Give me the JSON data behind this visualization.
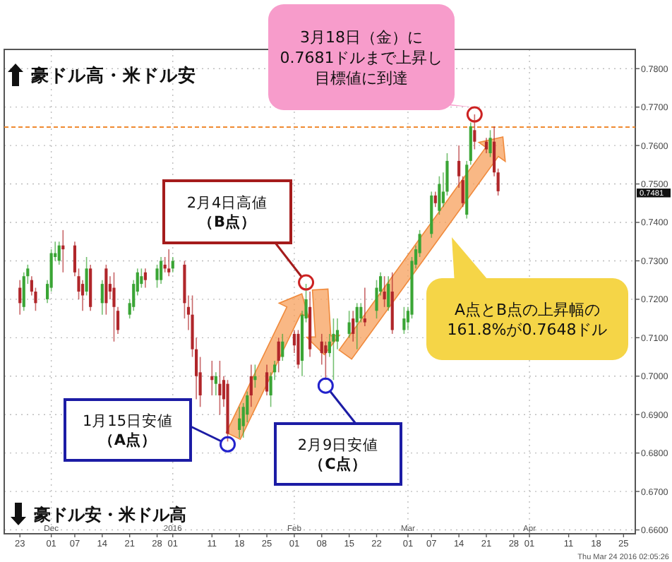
{
  "chart_data": {
    "type": "candlestick",
    "x": [
      "2015-11-23",
      "2015-11-24",
      "2015-11-25",
      "2015-11-26",
      "2015-11-27",
      "2015-11-30",
      "2015-12-01",
      "2015-12-02",
      "2015-12-03",
      "2015-12-04",
      "2015-12-07",
      "2015-12-08",
      "2015-12-09",
      "2015-12-10",
      "2015-12-11",
      "2015-12-14",
      "2015-12-15",
      "2015-12-16",
      "2015-12-17",
      "2015-12-18",
      "2015-12-21",
      "2015-12-22",
      "2015-12-23",
      "2015-12-24",
      "2015-12-25",
      "2015-12-28",
      "2015-12-29",
      "2015-12-30",
      "2015-12-31",
      "2016-01-01",
      "2016-01-04",
      "2016-01-05",
      "2016-01-06",
      "2016-01-07",
      "2016-01-08",
      "2016-01-11",
      "2016-01-12",
      "2016-01-13",
      "2016-01-14",
      "2016-01-15",
      "2016-01-18",
      "2016-01-19",
      "2016-01-20",
      "2016-01-21",
      "2016-01-22",
      "2016-01-25",
      "2016-01-26",
      "2016-01-27",
      "2016-01-28",
      "2016-01-29",
      "2016-02-01",
      "2016-02-02",
      "2016-02-03",
      "2016-02-04",
      "2016-02-05",
      "2016-02-08",
      "2016-02-09",
      "2016-02-10",
      "2016-02-11",
      "2016-02-12",
      "2016-02-15",
      "2016-02-16",
      "2016-02-17",
      "2016-02-18",
      "2016-02-19",
      "2016-02-22",
      "2016-02-23",
      "2016-02-24",
      "2016-02-25",
      "2016-02-26",
      "2016-02-29",
      "2016-03-01",
      "2016-03-02",
      "2016-03-03",
      "2016-03-04",
      "2016-03-07",
      "2016-03-08",
      "2016-03-09",
      "2016-03-10",
      "2016-03-11",
      "2016-03-14",
      "2016-03-15",
      "2016-03-16",
      "2016-03-17",
      "2016-03-18",
      "2016-03-21",
      "2016-03-22",
      "2016-03-23",
      "2016-03-24"
    ],
    "ohlc": [
      [
        0.723,
        0.725,
        0.716,
        0.719
      ],
      [
        0.718,
        0.727,
        0.717,
        0.726
      ],
      [
        0.726,
        0.729,
        0.724,
        0.728
      ],
      [
        0.725,
        0.726,
        0.721,
        0.722
      ],
      [
        0.722,
        0.723,
        0.717,
        0.719
      ],
      [
        0.72,
        0.725,
        0.719,
        0.724
      ],
      [
        0.723,
        0.733,
        0.722,
        0.732
      ],
      [
        0.731,
        0.735,
        0.73,
        0.732
      ],
      [
        0.73,
        0.735,
        0.729,
        0.734
      ],
      [
        0.734,
        0.738,
        0.727,
        0.733
      ],
      [
        0.734,
        0.735,
        0.726,
        0.727
      ],
      [
        0.726,
        0.728,
        0.72,
        0.722
      ],
      [
        0.724,
        0.725,
        0.717,
        0.721
      ],
      [
        0.722,
        0.731,
        0.721,
        0.728
      ],
      [
        0.728,
        0.729,
        0.717,
        0.718
      ],
      [
        0.719,
        0.725,
        0.716,
        0.724
      ],
      [
        0.728,
        0.729,
        0.716,
        0.719
      ],
      [
        0.724,
        0.726,
        0.72,
        0.722
      ],
      [
        0.723,
        0.727,
        0.709,
        0.718
      ],
      [
        0.717,
        0.718,
        0.711,
        0.712
      ],
      [
        0.716,
        0.72,
        0.715,
        0.719
      ],
      [
        0.718,
        0.725,
        0.717,
        0.724
      ],
      [
        0.722,
        0.728,
        0.721,
        0.727
      ],
      [
        0.724,
        0.728,
        0.723,
        0.726
      ],
      [
        0.727,
        0.728,
        0.723,
        0.725
      ],
      [
        0.725,
        0.729,
        0.723,
        0.728
      ],
      [
        0.725,
        0.731,
        0.724,
        0.73
      ],
      [
        0.729,
        0.731,
        0.727,
        0.728
      ],
      [
        0.728,
        0.733,
        0.726,
        0.727
      ],
      [
        0.728,
        0.731,
        0.727,
        0.73
      ],
      [
        0.729,
        0.73,
        0.715,
        0.719
      ],
      [
        0.718,
        0.721,
        0.712,
        0.716
      ],
      [
        0.716,
        0.721,
        0.705,
        0.707
      ],
      [
        0.707,
        0.71,
        0.694,
        0.7
      ],
      [
        0.701,
        0.705,
        0.692,
        0.695
      ],
      [
        0.7,
        0.704,
        0.695,
        0.699
      ],
      [
        0.698,
        0.701,
        0.695,
        0.7
      ],
      [
        0.698,
        0.704,
        0.69,
        0.695
      ],
      [
        0.699,
        0.7,
        0.692,
        0.694
      ],
      [
        0.698,
        0.699,
        0.683,
        0.685
      ],
      [
        0.686,
        0.692,
        0.684,
        0.689
      ],
      [
        0.687,
        0.693,
        0.684,
        0.692
      ],
      [
        0.69,
        0.696,
        0.688,
        0.695
      ],
      [
        0.7,
        0.703,
        0.692,
        0.695
      ],
      [
        0.699,
        0.703,
        0.697,
        0.7
      ],
      [
        0.701,
        0.703,
        0.695,
        0.696
      ],
      [
        0.695,
        0.701,
        0.692,
        0.7
      ],
      [
        0.701,
        0.704,
        0.699,
        0.703
      ],
      [
        0.709,
        0.71,
        0.701,
        0.704
      ],
      [
        0.705,
        0.711,
        0.704,
        0.709
      ],
      [
        0.711,
        0.712,
        0.706,
        0.708
      ],
      [
        0.711,
        0.712,
        0.702,
        0.703
      ],
      [
        0.704,
        0.717,
        0.7,
        0.716
      ],
      [
        0.715,
        0.724,
        0.714,
        0.72
      ],
      [
        0.718,
        0.722,
        0.705,
        0.707
      ],
      [
        0.709,
        0.711,
        0.703,
        0.706
      ],
      [
        0.708,
        0.709,
        0.699,
        0.706
      ],
      [
        0.706,
        0.711,
        0.705,
        0.709
      ],
      [
        0.709,
        0.715,
        0.699,
        0.711
      ],
      [
        0.709,
        0.715,
        0.707,
        0.712
      ],
      [
        0.711,
        0.717,
        0.71,
        0.714
      ],
      [
        0.715,
        0.717,
        0.709,
        0.711
      ],
      [
        0.714,
        0.719,
        0.707,
        0.718
      ],
      [
        0.715,
        0.719,
        0.714,
        0.718
      ],
      [
        0.715,
        0.723,
        0.713,
        0.714
      ],
      [
        0.717,
        0.725,
        0.715,
        0.723
      ],
      [
        0.722,
        0.727,
        0.721,
        0.726
      ],
      [
        0.722,
        0.726,
        0.718,
        0.72
      ],
      [
        0.718,
        0.726,
        0.717,
        0.724
      ],
      [
        0.722,
        0.727,
        0.711,
        0.712
      ],
      [
        0.712,
        0.718,
        0.711,
        0.715
      ],
      [
        0.714,
        0.718,
        0.712,
        0.717
      ],
      [
        0.716,
        0.731,
        0.715,
        0.73
      ],
      [
        0.729,
        0.734,
        0.728,
        0.733
      ],
      [
        0.732,
        0.738,
        0.731,
        0.737
      ],
      [
        0.737,
        0.748,
        0.736,
        0.747
      ],
      [
        0.747,
        0.748,
        0.744,
        0.745
      ],
      [
        0.743,
        0.752,
        0.742,
        0.75
      ],
      [
        0.745,
        0.753,
        0.744,
        0.748
      ],
      [
        0.748,
        0.758,
        0.747,
        0.756
      ],
      [
        0.756,
        0.76,
        0.749,
        0.752
      ],
      [
        0.751,
        0.752,
        0.744,
        0.745
      ],
      [
        0.742,
        0.756,
        0.741,
        0.755
      ],
      [
        0.756,
        0.766,
        0.755,
        0.765
      ],
      [
        0.764,
        0.7681,
        0.759,
        0.761
      ],
      [
        0.761,
        0.762,
        0.758,
        0.759
      ],
      [
        0.758,
        0.764,
        0.757,
        0.762
      ],
      [
        0.761,
        0.765,
        0.752,
        0.753
      ],
      [
        0.753,
        0.754,
        0.747,
        0.7481
      ]
    ],
    "colors": [
      "#b0262a",
      "#3aa535",
      "#3aa535",
      "#b0262a",
      "#b0262a",
      "#3aa535",
      "#3aa535",
      "#3aa535",
      "#3aa535",
      "#b0262a",
      "#b0262a",
      "#b0262a",
      "#b0262a",
      "#3aa535",
      "#b0262a",
      "#3aa535",
      "#b0262a",
      "#b0262a",
      "#b0262a",
      "#b0262a",
      "#3aa535",
      "#3aa535",
      "#3aa535",
      "#3aa535",
      "#b0262a",
      "#3aa535",
      "#3aa535",
      "#b0262a",
      "#b0262a",
      "#3aa535",
      "#b0262a",
      "#b0262a",
      "#b0262a",
      "#b0262a",
      "#b0262a",
      "#b0262a",
      "#3aa535",
      "#b0262a",
      "#b0262a",
      "#b0262a",
      "#3aa535",
      "#3aa535",
      "#3aa535",
      "#b0262a",
      "#3aa535",
      "#b0262a",
      "#3aa535",
      "#3aa535",
      "#b0262a",
      "#3aa535",
      "#b0262a",
      "#b0262a",
      "#3aa535",
      "#3aa535",
      "#b0262a",
      "#b0262a",
      "#b0262a",
      "#3aa535",
      "#3aa535",
      "#3aa535",
      "#3aa535",
      "#b0262a",
      "#3aa535",
      "#3aa535",
      "#b0262a",
      "#3aa535",
      "#3aa535",
      "#b0262a",
      "#3aa535",
      "#b0262a",
      "#3aa535",
      "#3aa535",
      "#3aa535",
      "#3aa535",
      "#3aa535",
      "#3aa535",
      "#b0262a",
      "#3aa535",
      "#3aa535",
      "#3aa535",
      "#b0262a",
      "#b0262a",
      "#3aa535",
      "#3aa535",
      "#b0262a",
      "#b0262a",
      "#3aa535",
      "#b0262a",
      "#b0262a"
    ],
    "xlim": [
      "2015-11-19",
      "2016-04-28"
    ],
    "xticks": [
      {
        "value": "2015-11-23",
        "label": "23"
      },
      {
        "value": "2015-12-01",
        "label": "01"
      },
      {
        "value": "2015-12-07",
        "label": "07"
      },
      {
        "value": "2015-12-14",
        "label": "14"
      },
      {
        "value": "2015-12-21",
        "label": "21"
      },
      {
        "value": "2015-12-28",
        "label": "28"
      },
      {
        "value": "2016-01-01",
        "label": "01"
      },
      {
        "value": "2016-01-11",
        "label": "11"
      },
      {
        "value": "2016-01-18",
        "label": "18"
      },
      {
        "value": "2016-01-25",
        "label": "25"
      },
      {
        "value": "2016-02-01",
        "label": "01"
      },
      {
        "value": "2016-02-08",
        "label": "08"
      },
      {
        "value": "2016-02-15",
        "label": "15"
      },
      {
        "value": "2016-02-22",
        "label": "22"
      },
      {
        "value": "2016-03-01",
        "label": "01"
      },
      {
        "value": "2016-03-07",
        "label": "07"
      },
      {
        "value": "2016-03-14",
        "label": "14"
      },
      {
        "value": "2016-03-21",
        "label": "21"
      },
      {
        "value": "2016-03-28",
        "label": "28"
      },
      {
        "value": "2016-04-01",
        "label": "01"
      },
      {
        "value": "2016-04-11",
        "label": "11"
      },
      {
        "value": "2016-04-18",
        "label": "18"
      },
      {
        "value": "2016-04-25",
        "label": "25"
      }
    ],
    "x2lim": [
      "2015-11-19",
      "2016-04-28"
    ],
    "x2ticks": [
      {
        "value": "2015-12-01",
        "label": "Dec"
      },
      {
        "value": "2016-01-01",
        "label": "2016"
      },
      {
        "value": "2016-02-01",
        "label": "Feb"
      },
      {
        "value": "2016-03-01",
        "label": "Mar"
      },
      {
        "value": "2016-04-01",
        "label": "Apr"
      }
    ],
    "ylim": [
      0.659,
      0.785
    ],
    "yticks": [
      {
        "value": 0.66,
        "label": "0.6600"
      },
      {
        "value": 0.67,
        "label": "0.6700"
      },
      {
        "value": 0.68,
        "label": "0.6800"
      },
      {
        "value": 0.69,
        "label": "0.6900"
      },
      {
        "value": 0.7,
        "label": "0.7000"
      },
      {
        "value": 0.71,
        "label": "0.7100"
      },
      {
        "value": 0.72,
        "label": "0.7200"
      },
      {
        "value": 0.73,
        "label": "0.7300"
      },
      {
        "value": 0.74,
        "label": "0.7400"
      },
      {
        "value": 0.75,
        "label": "0.7500"
      },
      {
        "value": 0.76,
        "label": "0.7600"
      },
      {
        "value": 0.77,
        "label": "0.7700"
      },
      {
        "value": 0.78,
        "label": "0.7800"
      }
    ],
    "grid": true,
    "ref_lines": [
      {
        "axis": "y",
        "value": 0.7648,
        "color": "#f08a30",
        "line_style": "dashed"
      }
    ],
    "annotations": [
      "豪ドル高・米ドル安",
      "豪ドル安・米ドル高",
      "3月18日（金）に0.7681ドルまで上昇し目標値に到達",
      "2月4日高値**（B点）**",
      "1月15日安値**（A点）**",
      "2月9日安値**（C点）**",
      "A点とB点の上昇幅の161.8%が0.7648ドル",
      "0.7481",
      "Thu Mar 24 2016 02:05:26"
    ]
  }
}
